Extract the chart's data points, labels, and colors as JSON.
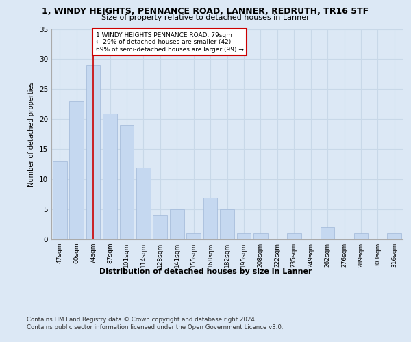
{
  "title1": "1, WINDY HEIGHTS, PENNANCE ROAD, LANNER, REDRUTH, TR16 5TF",
  "title2": "Size of property relative to detached houses in Lanner",
  "xlabel": "Distribution of detached houses by size in Lanner",
  "ylabel": "Number of detached properties",
  "categories": [
    "47sqm",
    "60sqm",
    "74sqm",
    "87sqm",
    "101sqm",
    "114sqm",
    "128sqm",
    "141sqm",
    "155sqm",
    "168sqm",
    "182sqm",
    "195sqm",
    "208sqm",
    "222sqm",
    "235sqm",
    "249sqm",
    "262sqm",
    "276sqm",
    "289sqm",
    "303sqm",
    "316sqm"
  ],
  "values": [
    13,
    23,
    29,
    21,
    19,
    12,
    4,
    5,
    1,
    7,
    5,
    1,
    1,
    0,
    1,
    0,
    2,
    0,
    1,
    0,
    1
  ],
  "bar_color": "#c5d8f0",
  "bar_edge_color": "#a0b8d8",
  "red_line_index": 2,
  "red_line_color": "#cc0000",
  "annotation_text": "1 WINDY HEIGHTS PENNANCE ROAD: 79sqm\n← 29% of detached houses are smaller (42)\n69% of semi-detached houses are larger (99) →",
  "annotation_box_color": "#ffffff",
  "annotation_box_edge_color": "#cc0000",
  "ylim": [
    0,
    35
  ],
  "yticks": [
    0,
    5,
    10,
    15,
    20,
    25,
    30,
    35
  ],
  "grid_color": "#c8d8e8",
  "footer1": "Contains HM Land Registry data © Crown copyright and database right 2024.",
  "footer2": "Contains public sector information licensed under the Open Government Licence v3.0.",
  "bg_color": "#dce8f5",
  "plot_bg_color": "#dce8f5"
}
